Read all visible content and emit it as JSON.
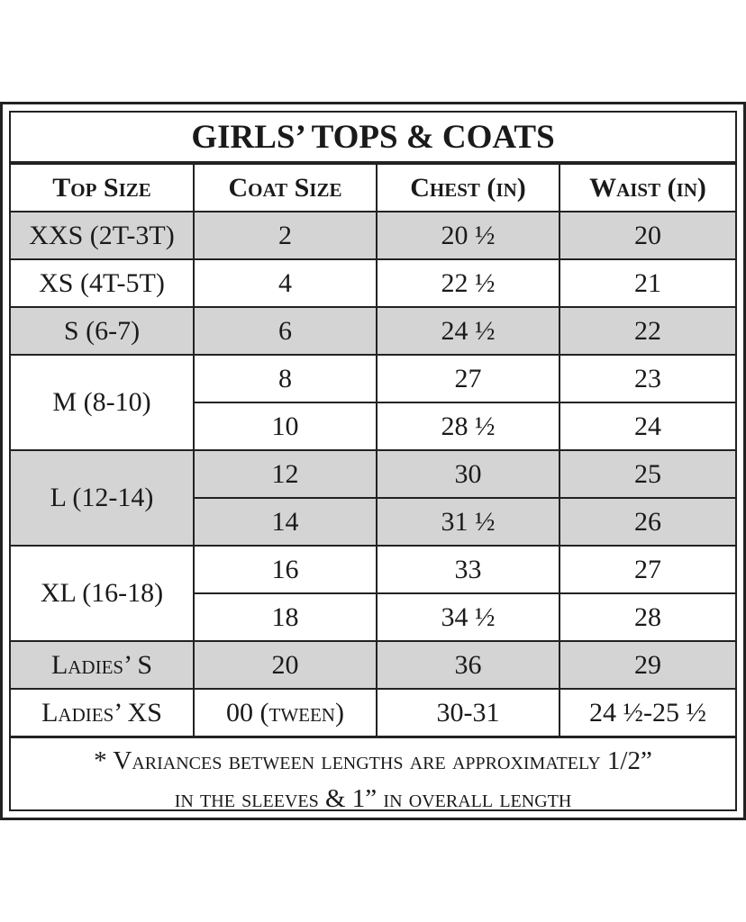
{
  "title": "GIRLS’ TOPS & COATS",
  "table": {
    "headers": [
      "Top Size",
      "Coat Size",
      "Chest (in)",
      "Waist (in)"
    ],
    "groups": [
      {
        "top_size": "XXS (2T-3T)",
        "rows": [
          [
            "2",
            "20 ½",
            "20"
          ]
        ]
      },
      {
        "top_size": "XS (4T-5T)",
        "rows": [
          [
            "4",
            "22 ½",
            "21"
          ]
        ]
      },
      {
        "top_size": "S (6-7)",
        "rows": [
          [
            "6",
            "24 ½",
            "22"
          ]
        ]
      },
      {
        "top_size": "M (8-10)",
        "rows": [
          [
            "8",
            "27",
            "23"
          ],
          [
            "10",
            "28 ½",
            "24"
          ]
        ]
      },
      {
        "top_size": "L (12-14)",
        "rows": [
          [
            "12",
            "30",
            "25"
          ],
          [
            "14",
            "31 ½",
            "26"
          ]
        ]
      },
      {
        "top_size": "XL (16-18)",
        "rows": [
          [
            "16",
            "33",
            "27"
          ],
          [
            "18",
            "34 ½",
            "28"
          ]
        ]
      },
      {
        "top_size": "Ladies’ S",
        "rows": [
          [
            "20",
            "36",
            "29"
          ]
        ]
      },
      {
        "top_size": "Ladies’ XS",
        "rows": [
          [
            "00 (tween)",
            "30-31",
            "24 ½-25 ½"
          ]
        ]
      }
    ]
  },
  "footnote": [
    "* Variances between lengths are approximately 1/2”",
    "in the sleeves & 1” in overall length"
  ]
}
